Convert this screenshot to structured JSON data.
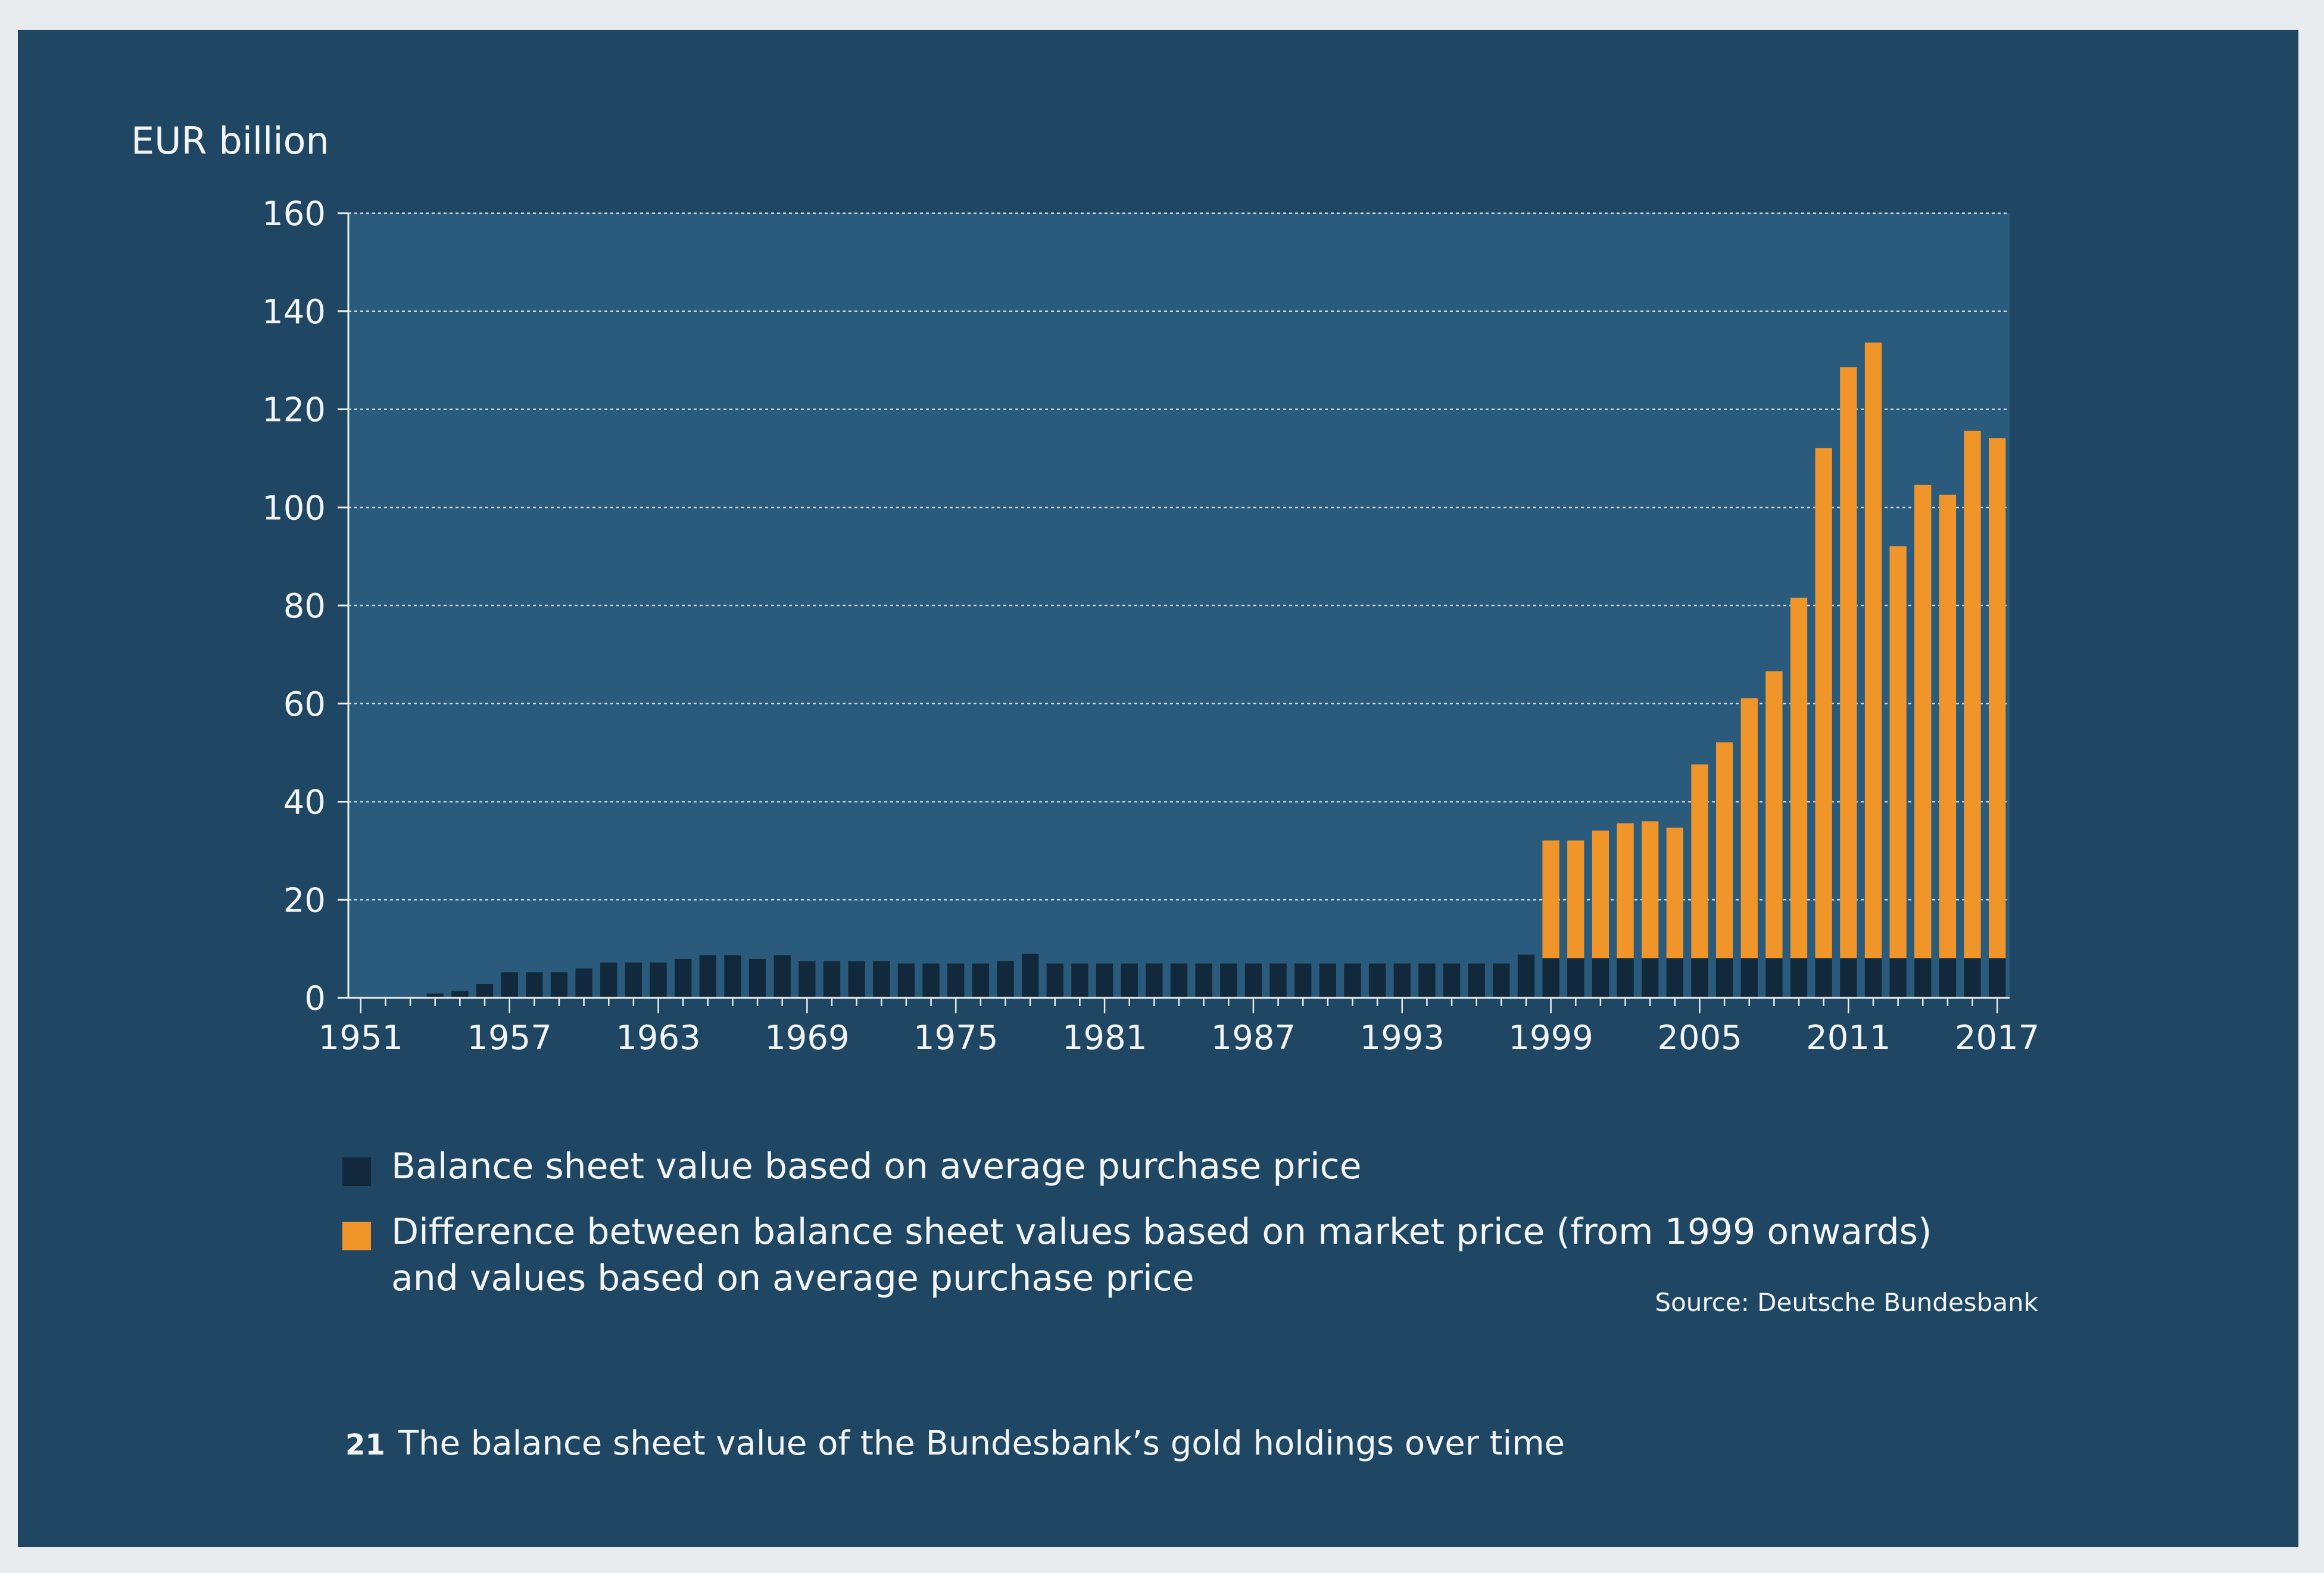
{
  "chart_data": {
    "type": "bar",
    "stacked": true,
    "ylabel": "EUR billion",
    "ylim": [
      0,
      160
    ],
    "yticks": [
      0,
      20,
      40,
      60,
      80,
      100,
      120,
      140,
      160
    ],
    "xtick_labels": [
      "1951",
      "1957",
      "1963",
      "1969",
      "1975",
      "1981",
      "1987",
      "1993",
      "1999",
      "2005",
      "2011",
      "2017"
    ],
    "grid": true,
    "legend_placement": "below",
    "categories": [
      1951,
      1952,
      1953,
      1954,
      1955,
      1956,
      1957,
      1958,
      1959,
      1960,
      1961,
      1962,
      1963,
      1964,
      1965,
      1966,
      1967,
      1968,
      1969,
      1970,
      1971,
      1972,
      1973,
      1974,
      1975,
      1976,
      1977,
      1978,
      1979,
      1980,
      1981,
      1982,
      1983,
      1984,
      1985,
      1986,
      1987,
      1988,
      1989,
      1990,
      1991,
      1992,
      1993,
      1994,
      1995,
      1996,
      1997,
      1998,
      1999,
      2000,
      2001,
      2002,
      2003,
      2004,
      2005,
      2006,
      2007,
      2008,
      2009,
      2010,
      2011,
      2012,
      2013,
      2014,
      2015,
      2016,
      2017
    ],
    "series": [
      {
        "name": "Balance sheet value based on average purchase price",
        "color": "#12293b",
        "values": [
          0,
          0,
          0,
          0.9,
          1.4,
          2.8,
          5.2,
          5.2,
          5.2,
          6.0,
          7.2,
          7.2,
          7.2,
          7.9,
          8.7,
          8.7,
          7.9,
          8.7,
          7.5,
          7.5,
          7.5,
          7.5,
          7.0,
          7.0,
          7.0,
          7.0,
          7.5,
          9.0,
          7.0,
          7.0,
          7.0,
          7.0,
          7.0,
          7.0,
          7.0,
          7.0,
          7.0,
          7.0,
          7.0,
          7.0,
          7.0,
          7.0,
          7.0,
          7.0,
          7.0,
          7.0,
          7.0,
          8.8,
          8.1,
          8.1,
          8.1,
          8.1,
          8.1,
          8.1,
          8.1,
          8.1,
          8.1,
          8.1,
          8.1,
          8.1,
          8.1,
          8.1,
          8.1,
          8.1,
          8.1,
          8.1,
          8.1
        ]
      },
      {
        "name": "Difference between balance sheet values based on market price (from 1999 onwards) and values based on average purchase price",
        "color": "#f0952a",
        "values": [
          0,
          0,
          0,
          0,
          0,
          0,
          0,
          0,
          0,
          0,
          0,
          0,
          0,
          0,
          0,
          0,
          0,
          0,
          0,
          0,
          0,
          0,
          0,
          0,
          0,
          0,
          0,
          0,
          0,
          0,
          0,
          0,
          0,
          0,
          0,
          0,
          0,
          0,
          0,
          0,
          0,
          0,
          0,
          0,
          0,
          0,
          0,
          0,
          24.0,
          24.0,
          26.0,
          27.5,
          27.9,
          26.6,
          39.5,
          44.0,
          53.0,
          58.5,
          73.5,
          104.0,
          120.5,
          125.5,
          84.0,
          96.5,
          94.5,
          107.5,
          106.0
        ]
      }
    ]
  },
  "legend": [
    {
      "color": "#12293b",
      "lines": [
        "Balance sheet value based on average purchase price"
      ]
    },
    {
      "color": "#f0952a",
      "lines": [
        "Difference between balance sheet values based on market price (from 1999 onwards)",
        "and values based on average purchase price"
      ]
    }
  ],
  "source": "Source: Deutsche Bundesbank",
  "caption": {
    "number": "21",
    "text": "The balance sheet value of the Bundesbank’s gold holdings over time"
  }
}
